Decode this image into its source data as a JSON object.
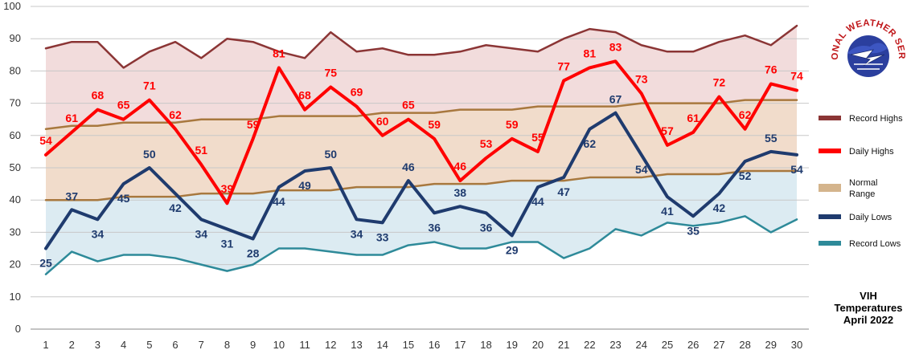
{
  "chart_data": {
    "type": "line",
    "title": [
      "VIH",
      "Temperatures",
      "April 2022"
    ],
    "xlabel": "",
    "ylabel": "",
    "x": [
      1,
      2,
      3,
      4,
      5,
      6,
      7,
      8,
      9,
      10,
      11,
      12,
      13,
      14,
      15,
      16,
      17,
      18,
      19,
      20,
      21,
      22,
      23,
      24,
      25,
      26,
      27,
      28,
      29,
      30
    ],
    "xlim": [
      1,
      30
    ],
    "ylim": [
      0,
      100
    ],
    "yticks": [
      0,
      10,
      20,
      30,
      40,
      50,
      60,
      70,
      80,
      90,
      100
    ],
    "grid": "horizontal",
    "legend_position": "right",
    "series": [
      {
        "key": "record_highs",
        "name": "Record Highs",
        "color": "#8b3535",
        "values": [
          87,
          89,
          89,
          81,
          86,
          89,
          84,
          90,
          89,
          86,
          84,
          92,
          86,
          87,
          85,
          85,
          86,
          88,
          87,
          86,
          90,
          93,
          92,
          88,
          86,
          86,
          89,
          91,
          88,
          94
        ]
      },
      {
        "key": "daily_highs",
        "name": "Daily Highs",
        "color": "#ff0000",
        "labeled": true,
        "values": [
          54,
          61,
          68,
          65,
          71,
          62,
          51,
          39,
          59,
          81,
          68,
          75,
          69,
          60,
          65,
          59,
          46,
          53,
          59,
          55,
          77,
          81,
          83,
          73,
          57,
          61,
          72,
          62,
          76,
          74
        ]
      },
      {
        "key": "normal_high",
        "name": "",
        "color": "#a8783e",
        "values": [
          62,
          63,
          63,
          64,
          64,
          64,
          65,
          65,
          65,
          66,
          66,
          66,
          66,
          67,
          67,
          67,
          68,
          68,
          68,
          69,
          69,
          69,
          69,
          70,
          70,
          70,
          70,
          71,
          71,
          71
        ]
      },
      {
        "key": "normal_low",
        "name": "",
        "color": "#a8783e",
        "values": [
          40,
          40,
          40,
          41,
          41,
          41,
          42,
          42,
          42,
          43,
          43,
          43,
          44,
          44,
          44,
          45,
          45,
          45,
          46,
          46,
          46,
          47,
          47,
          47,
          48,
          48,
          48,
          49,
          49,
          49
        ]
      },
      {
        "key": "daily_lows",
        "name": "Daily Lows",
        "color": "#1f3b6e",
        "labeled": true,
        "values": [
          25,
          37,
          34,
          45,
          50,
          42,
          34,
          31,
          28,
          44,
          49,
          50,
          34,
          33,
          46,
          36,
          38,
          36,
          29,
          44,
          47,
          62,
          67,
          54,
          41,
          35,
          42,
          52,
          55,
          54
        ]
      },
      {
        "key": "record_lows",
        "name": "Record Lows",
        "color": "#2e8a99",
        "values": [
          17,
          24,
          21,
          23,
          23,
          22,
          20,
          18,
          20,
          25,
          25,
          24,
          23,
          23,
          26,
          27,
          25,
          25,
          27,
          27,
          22,
          25,
          31,
          29,
          33,
          32,
          33,
          35,
          30,
          34
        ]
      }
    ],
    "legend": [
      {
        "name": "Record Highs",
        "color": "#8b3535",
        "kind": "line"
      },
      {
        "name": "Daily Highs",
        "color": "#ff0000",
        "kind": "line"
      },
      {
        "name": "Normal Range",
        "color": "#d4b48c",
        "kind": "fill"
      },
      {
        "name": "Daily Lows",
        "color": "#1f3b6e",
        "kind": "line"
      },
      {
        "name": "Record Lows",
        "color": "#2e8a99",
        "kind": "line"
      }
    ],
    "fills": {
      "record_high_band": "#f2dcdc",
      "normal_band": "#f1dccb",
      "record_low_band": "#dcebf2"
    }
  },
  "logo": {
    "text": "NATIONAL WEATHER SERVICE",
    "ring_color": "#c0181b",
    "globe_color": "#2b3f9e",
    "bolt_color": "#ffffff"
  }
}
